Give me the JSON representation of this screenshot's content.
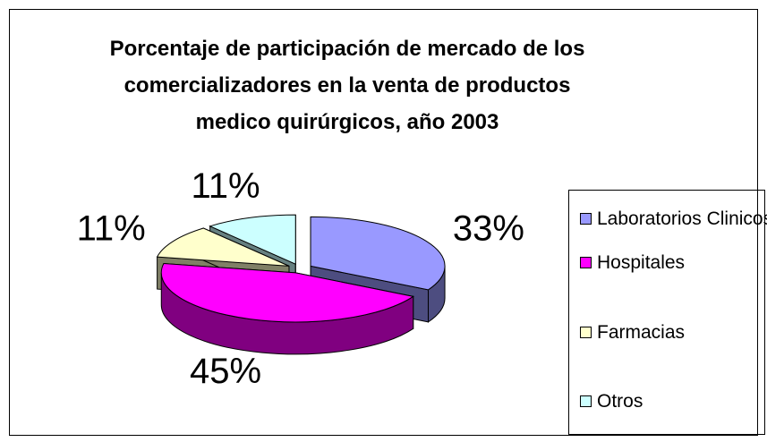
{
  "chart_data": {
    "type": "pie",
    "title": "Porcentaje de participación de mercado de los comercializadores en la venta de productos medico quirúrgicos, año 2003",
    "categories": [
      "Laboratorios Clinicos",
      "Hospitales",
      "Farmacias",
      "Otros"
    ],
    "values": [
      33,
      45,
      11,
      11
    ],
    "value_labels": [
      "33%",
      "45%",
      "11%",
      "11%"
    ],
    "colors": [
      "#9999ff",
      "#ff00ff",
      "#ffffcc",
      "#ccffff"
    ],
    "legend": "right"
  }
}
